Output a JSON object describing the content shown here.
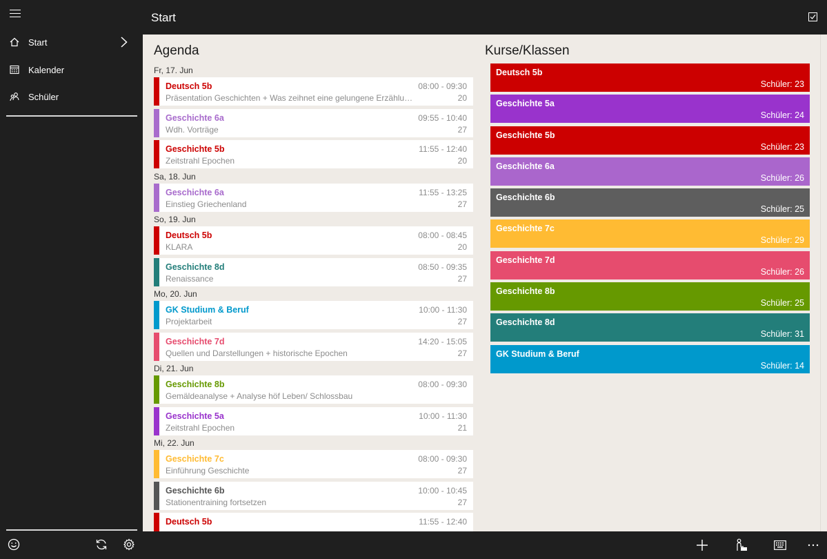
{
  "header": {
    "title": "Start"
  },
  "sidebar": {
    "items": [
      {
        "label": "Start",
        "icon": "home-icon"
      },
      {
        "label": "Kalender",
        "icon": "calendar-icon"
      },
      {
        "label": "Schüler",
        "icon": "students-icon"
      }
    ]
  },
  "agenda": {
    "title": "Agenda",
    "days": [
      {
        "label": "Fr, 17. Jun",
        "events": [
          {
            "title": "Deutsch 5b",
            "subtitle": "Präsentation Geschichten + Was zeihnet eine gelungene Erzählung aus?",
            "time": "08:00 - 09:30",
            "count": "20",
            "color": "#cc0000"
          },
          {
            "title": "Geschichte 6a",
            "subtitle": "Wdh. Vorträge",
            "time": "09:55 - 10:40",
            "count": "27",
            "color": "#a86bcc"
          },
          {
            "title": "Geschichte 5b",
            "subtitle": "Zeitstrahl Epochen",
            "time": "11:55 - 12:40",
            "count": "20",
            "color": "#cc0000"
          }
        ]
      },
      {
        "label": "Sa, 18. Jun",
        "events": [
          {
            "title": "Geschichte 6a",
            "subtitle": "Einstieg Griechenland",
            "time": "11:55 - 13:25",
            "count": "27",
            "color": "#a86bcc"
          }
        ]
      },
      {
        "label": "So, 19. Jun",
        "events": [
          {
            "title": "Deutsch 5b",
            "subtitle": "KLARA",
            "time": "08:00 - 08:45",
            "count": "20",
            "color": "#cc0000"
          },
          {
            "title": "Geschichte 8d",
            "subtitle": "Renaissance",
            "time": "08:50 - 09:35",
            "count": "27",
            "color": "#237e7a"
          }
        ]
      },
      {
        "label": "Mo, 20. Jun",
        "events": [
          {
            "title": "GK Studium & Beruf",
            "subtitle": "Projektarbeit",
            "time": "10:00 - 11:30",
            "count": "27",
            "color": "#0099cc"
          },
          {
            "title": "Geschichte 7d",
            "subtitle": "Quellen und Darstellungen + historische Epochen",
            "time": "14:20 - 15:05",
            "count": "27",
            "color": "#e64c6e"
          }
        ]
      },
      {
        "label": "Di, 21. Jun",
        "events": [
          {
            "title": "Geschichte 8b",
            "subtitle": "Gemäldeanalyse + Analyse höf Leben/ Schlossbau",
            "time": "08:00 - 09:30",
            "count": "",
            "color": "#669900"
          },
          {
            "title": "Geschichte 5a",
            "subtitle": "Zeitstrahl Epochen",
            "time": "10:00 - 11:30",
            "count": "21",
            "color": "#9933cc"
          }
        ]
      },
      {
        "label": "Mi, 22. Jun",
        "events": [
          {
            "title": "Geschichte 7c",
            "subtitle": "Einführung Geschichte",
            "time": "08:00 - 09:30",
            "count": "27",
            "color": "#ffbb33"
          },
          {
            "title": "Geschichte 6b",
            "subtitle": "Stationentraining fortsetzen",
            "time": "10:00 - 10:45",
            "count": "27",
            "color": "#555555"
          },
          {
            "title": "Deutsch 5b",
            "subtitle": "",
            "time": "11:55 - 12:40",
            "count": "",
            "color": "#cc0000"
          }
        ]
      }
    ]
  },
  "courses": {
    "title": "Kurse/Klassen",
    "items": [
      {
        "name": "Deutsch 5b",
        "count": "Schüler: 23",
        "color": "#cc0000"
      },
      {
        "name": "Geschichte 5a",
        "count": "Schüler: 24",
        "color": "#9933cc"
      },
      {
        "name": "Geschichte 5b",
        "count": "Schüler: 23",
        "color": "#cc0000"
      },
      {
        "name": "Geschichte 6a",
        "count": "Schüler: 26",
        "color": "#aa66cc"
      },
      {
        "name": "Geschichte 6b",
        "count": "Schüler: 25",
        "color": "#5e5e5e"
      },
      {
        "name": "Geschichte 7c",
        "count": "Schüler: 29",
        "color": "#ffbb33"
      },
      {
        "name": "Geschichte 7d",
        "count": "Schüler: 26",
        "color": "#e64c6e"
      },
      {
        "name": "Geschichte 8b",
        "count": "Schüler: 25",
        "color": "#669900"
      },
      {
        "name": "Geschichte 8d",
        "count": "Schüler: 31",
        "color": "#237e7a"
      },
      {
        "name": "GK Studium & Beruf",
        "count": "Schüler: 14",
        "color": "#0099cc"
      }
    ]
  },
  "bottombar": {
    "icons": [
      "plus-icon",
      "teacher-icon",
      "keyboard-icon",
      "more-icon"
    ]
  }
}
